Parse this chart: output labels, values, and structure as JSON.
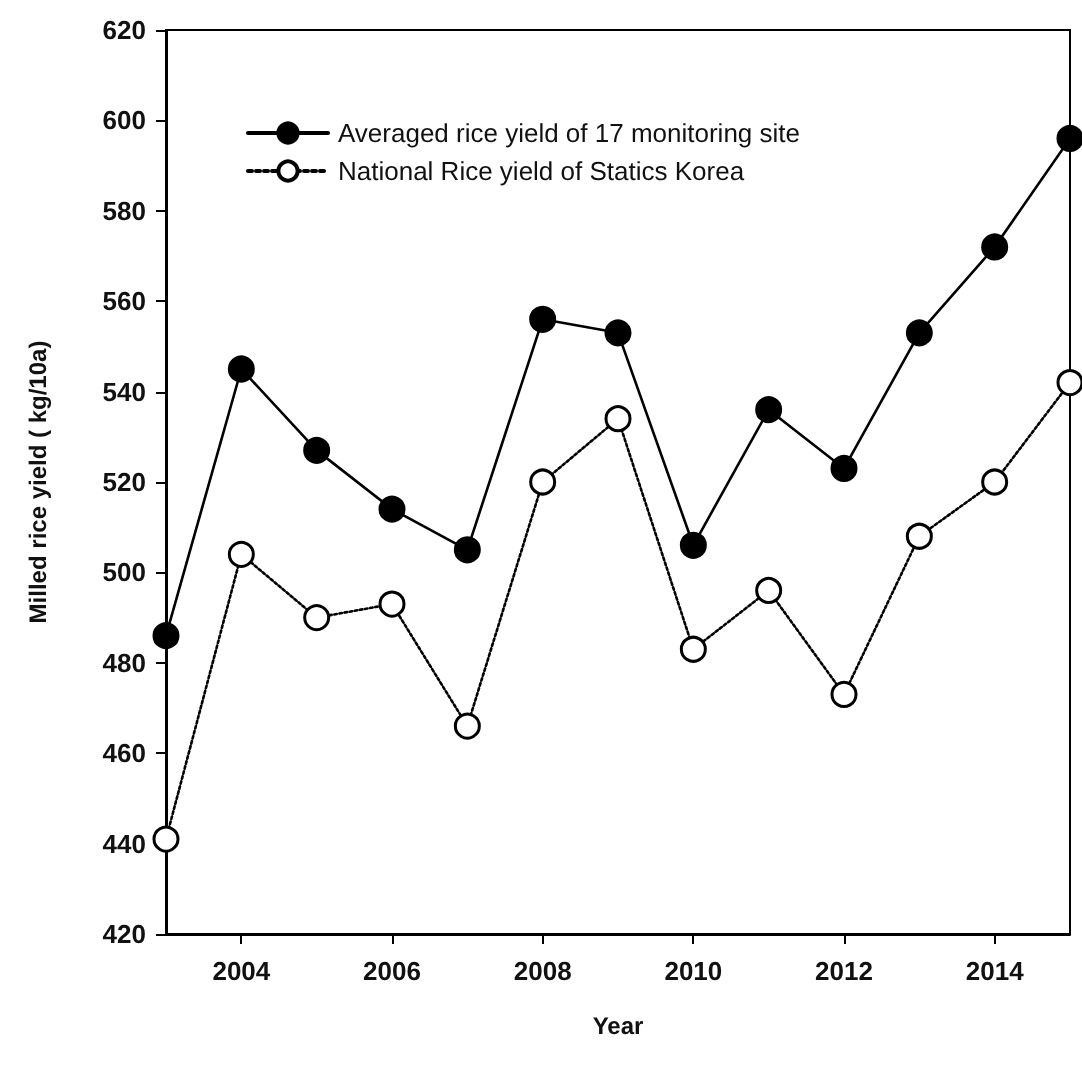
{
  "chart_data": {
    "type": "line",
    "xlabel": "Year",
    "ylabel": "Milled rice yield ( kg/10a)",
    "x": [
      2003,
      2004,
      2005,
      2006,
      2007,
      2008,
      2009,
      2010,
      2011,
      2012,
      2013,
      2014,
      2015
    ],
    "series": [
      {
        "name": "Averaged rice yield of 17 monitoring site",
        "color": "#000000",
        "line_style": "solid",
        "values": [
          486,
          545,
          527,
          514,
          505,
          556,
          553,
          506,
          536,
          523,
          553,
          572,
          596
        ]
      },
      {
        "name": "National Rice yield of Statics Korea",
        "color": "#ffffff",
        "line_style": "dotted",
        "values": [
          441,
          504,
          490,
          493,
          466,
          520,
          534,
          483,
          496,
          473,
          508,
          520,
          542
        ]
      }
    ],
    "xlim": [
      2003,
      2015
    ],
    "xticks": [
      2004,
      2006,
      2008,
      2010,
      2012,
      2014
    ],
    "ylim": [
      420,
      620
    ],
    "yticks": [
      420,
      440,
      460,
      480,
      500,
      520,
      540,
      560,
      580,
      600,
      620
    ],
    "marker": "circle",
    "grid": false,
    "legend": "top left"
  }
}
